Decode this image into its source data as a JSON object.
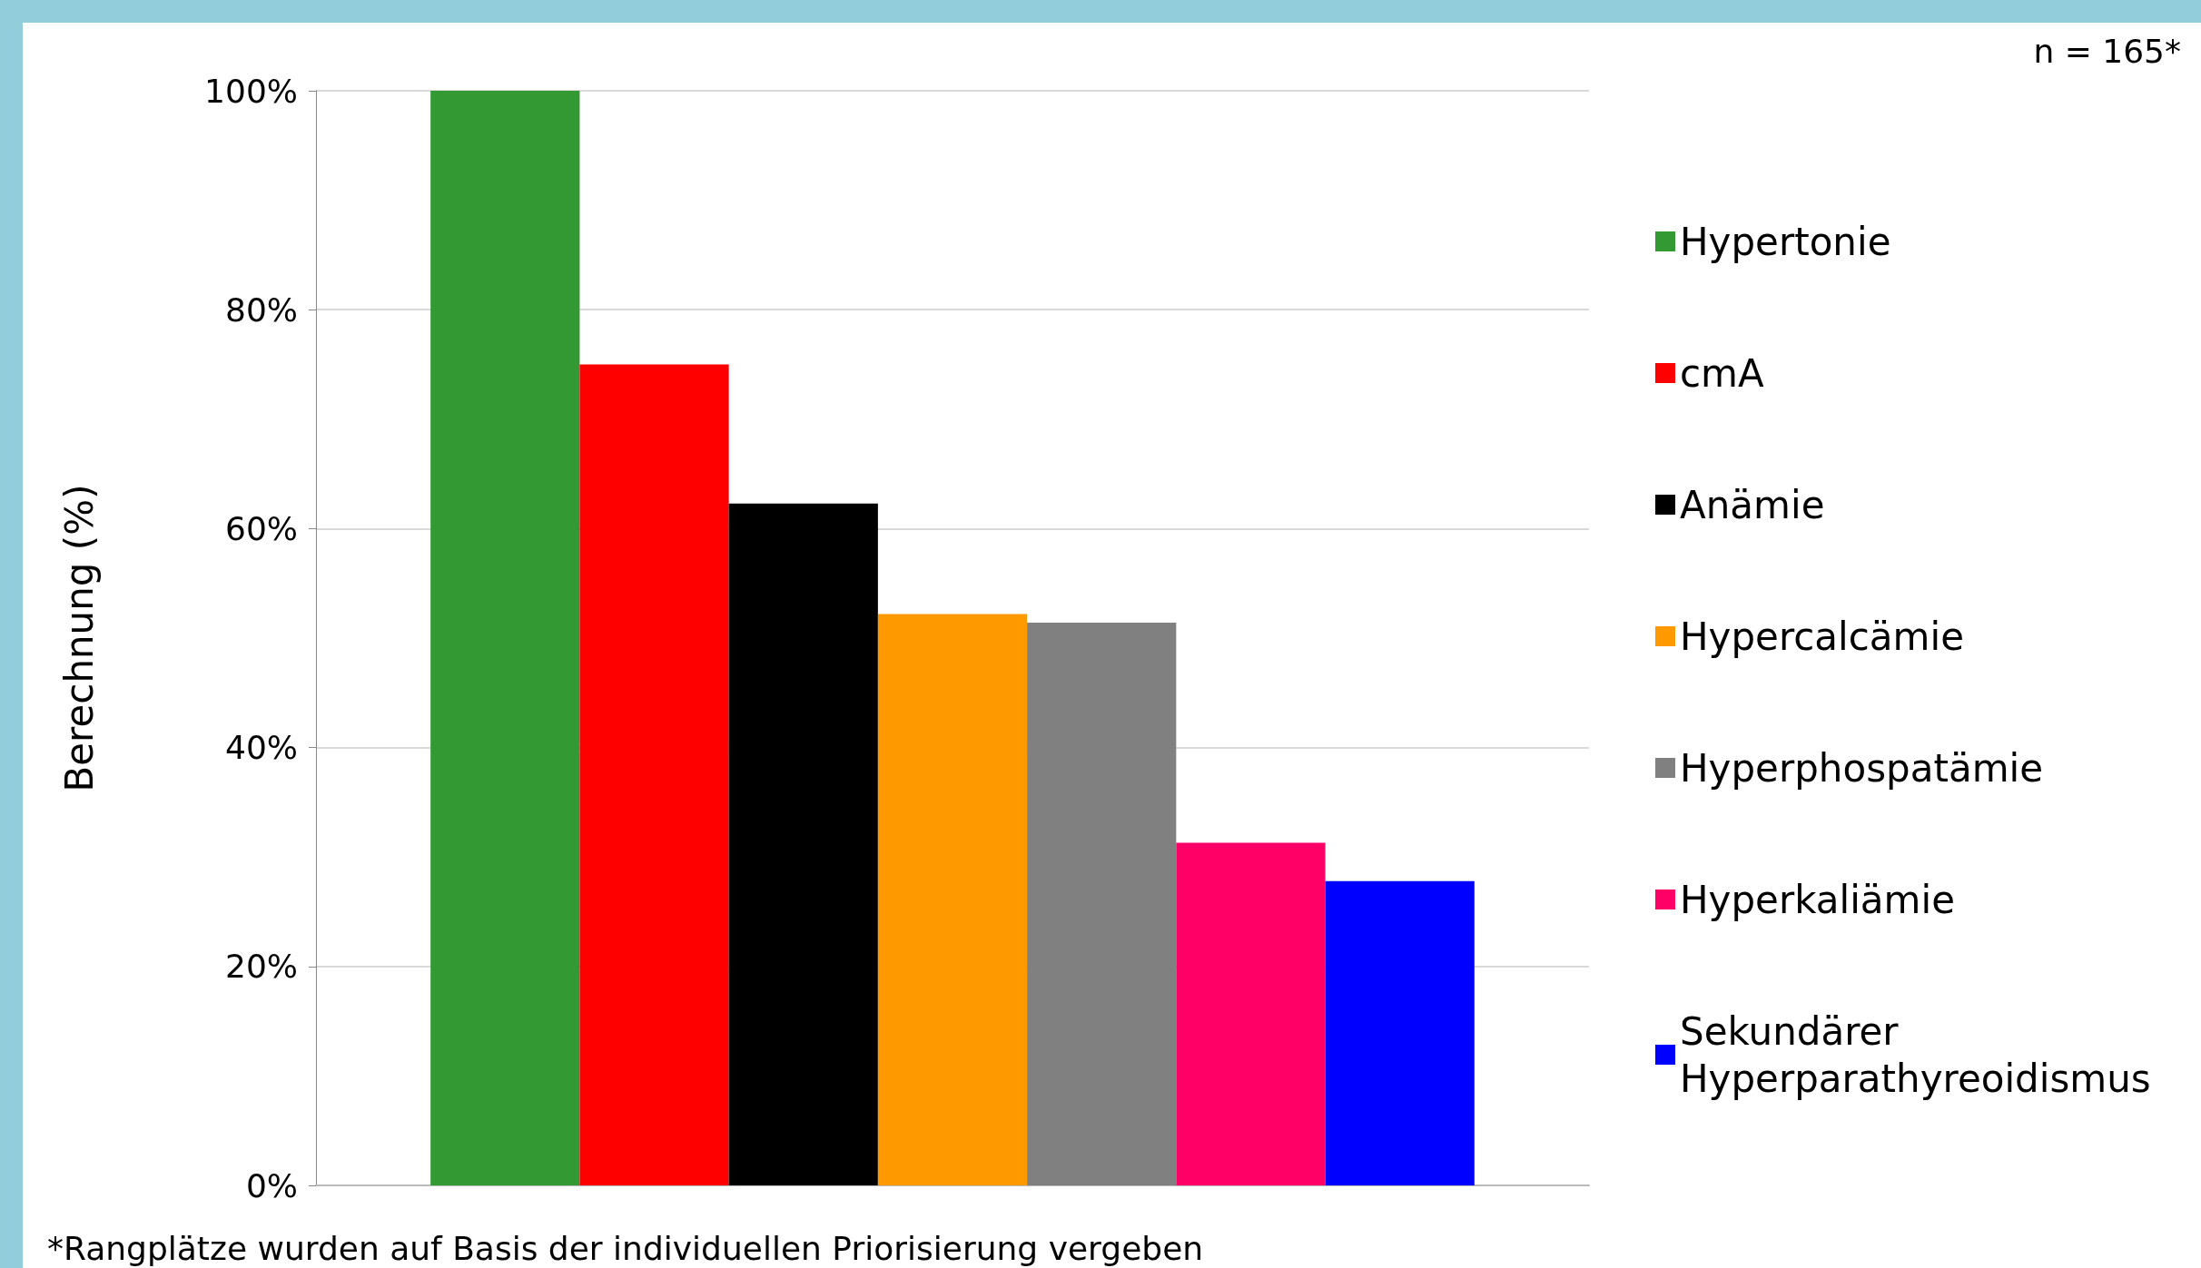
{
  "chart_data": {
    "type": "bar",
    "ylabel": "Berechnung (%)",
    "categories": [
      null
    ],
    "series": [
      {
        "name": "Hypertonie",
        "color": "#339933",
        "values": [
          100
        ]
      },
      {
        "name": "cmA",
        "color": "#ff0000",
        "values": [
          75
        ]
      },
      {
        "name": "Anämie",
        "color": "#000000",
        "values": [
          62.3
        ]
      },
      {
        "name": "Hypercalcämie",
        "color": "#ff9900",
        "values": [
          52.2
        ]
      },
      {
        "name": "Hyperphospatämie",
        "color": "#808080",
        "values": [
          51.4
        ]
      },
      {
        "name": "Hyperkaliämie",
        "color": "#ff0066",
        "values": [
          31.3
        ]
      },
      {
        "name": "Sekundärer Hyperparathyreoidismus",
        "color": "#0000ff",
        "values": [
          27.8
        ]
      }
    ],
    "ylim": [
      0,
      100
    ],
    "yticks": [
      {
        "value": 0,
        "label": "0%"
      },
      {
        "value": 20,
        "label": "20%"
      },
      {
        "value": 40,
        "label": "40%"
      },
      {
        "value": 60,
        "label": "60%"
      },
      {
        "value": 80,
        "label": "80%"
      },
      {
        "value": 100,
        "label": "100%"
      }
    ],
    "grid": "y",
    "legend": "right",
    "annotations": [
      "n = 165*",
      "*Rangplätze wurden auf Basis der individuellen Priorisierung vergeben"
    ]
  }
}
